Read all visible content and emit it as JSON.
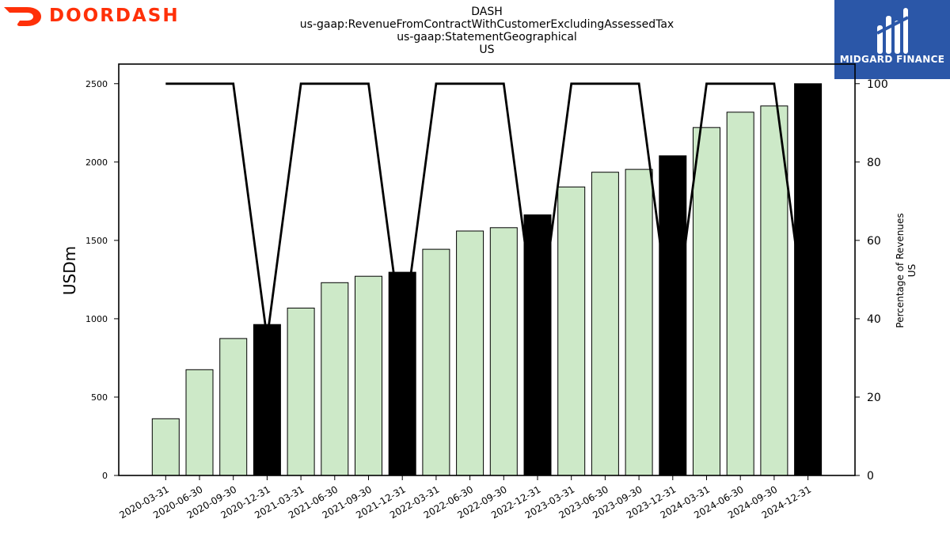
{
  "header": {
    "brand_left": "DOORDASH",
    "brand_right": "MIDGARD FINANCE",
    "title_lines": [
      "DASH",
      "us-gaap:RevenueFromContractWithCustomerExcludingAssessedTax",
      "us-gaap:StatementGeographical",
      "US"
    ]
  },
  "colors": {
    "doordash_red": "#FF3008",
    "midgard_blue": "#2b57a8",
    "bar_light": "#cde9c8",
    "bar_dark": "#000000"
  },
  "chart_data": {
    "type": "bar",
    "categories": [
      "2020-03-31",
      "2020-06-30",
      "2020-09-30",
      "2020-12-31",
      "2021-03-31",
      "2021-06-30",
      "2021-09-30",
      "2021-12-31",
      "2022-03-31",
      "2022-06-30",
      "2022-09-30",
      "2022-12-31",
      "2023-03-31",
      "2023-06-30",
      "2023-09-30",
      "2023-12-31",
      "2024-03-31",
      "2024-06-30",
      "2024-09-30",
      "2024-12-31"
    ],
    "series": [
      {
        "axis": "left",
        "type": "bar",
        "values": [
          362,
          675,
          874,
          963,
          1068,
          1230,
          1271,
          1297,
          1443,
          1560,
          1581,
          1663,
          1841,
          1935,
          1953,
          2040,
          2220,
          2318,
          2358,
          2500
        ]
      },
      {
        "axis": "right",
        "type": "line",
        "values": [
          100,
          100,
          100,
          35,
          100,
          100,
          100,
          35,
          100,
          100,
          100,
          35,
          100,
          100,
          100,
          35,
          100,
          100,
          100,
          35
        ]
      }
    ],
    "dark_bar_indices": [
      3,
      7,
      11,
      15,
      19
    ],
    "ylabel": "USDm",
    "ylabel_right": [
      "Percentage of Revenues",
      "US"
    ],
    "ylim": [
      0,
      2625
    ],
    "ylim_right": [
      0,
      105
    ],
    "yticks_left": [
      "0",
      "500",
      "1000",
      "1500",
      "2000",
      "2500"
    ],
    "yticks_right": [
      "0",
      "20",
      "40",
      "60",
      "80",
      "100"
    ],
    "grid": false,
    "legend": "none"
  }
}
